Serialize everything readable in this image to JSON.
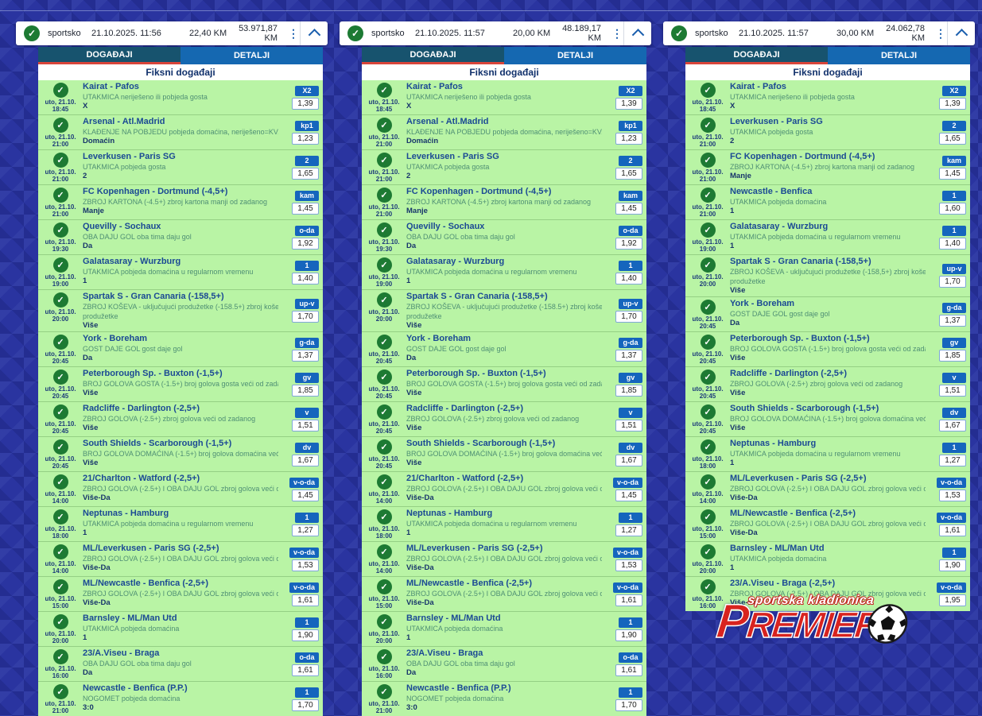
{
  "icons": {
    "check_icon": "✓",
    "menu_icon": "⋮",
    "collapse_icon": "chevron-up",
    "soccer_ball_icon": "soccer-ball"
  },
  "colors": {
    "background": "#2a34a0",
    "row_green": "#b9f4a5",
    "badge_blue": "#1565bd",
    "tab_active": "#17536e",
    "tab_inactive": "#1568b1",
    "tab_underline_red": "#d9453a",
    "check_green": "#1d7a33",
    "brand_red": "#d8231f"
  },
  "logo": {
    "tagline": "sportska kladionica",
    "name": "PREMIER"
  },
  "tickets": [
    {
      "header": {
        "type": "sportsko",
        "datetime": "21.10.2025. 11:56",
        "stake": "22,40 KM",
        "payout": "53.971,87 KM"
      },
      "tabs": [
        {
          "label": "DOGAĐAJI",
          "active": true
        },
        {
          "label": "DETALJI",
          "active": false
        }
      ],
      "section_title": "Fiksni događaji",
      "events": [
        {
          "day": "uto, 21.10.",
          "time": "18:45",
          "match": "Kairat - Pafos",
          "market": "UTAKMICA neriješeno ili pobjeda gosta",
          "pick": "X",
          "code": "X2",
          "odds": "1,39"
        },
        {
          "day": "uto, 21.10.",
          "time": "21:00",
          "match": "Arsenal - Atl.Madrid",
          "market": "KLAĐENJE NA POBJEDU pobjeda domaćina, neriješeno=KV.1",
          "pick": "Domaćin",
          "code": "kp1",
          "odds": "1,23"
        },
        {
          "day": "uto, 21.10.",
          "time": "21:00",
          "match": "Leverkusen - Paris SG",
          "market": "UTAKMICA pobjeda gosta",
          "pick": "2",
          "code": "2",
          "odds": "1,65"
        },
        {
          "day": "uto, 21.10.",
          "time": "21:00",
          "match": "FC Kopenhagen - Dortmund (-4,5+)",
          "market": "ZBROJ KARTONA (-4.5+) zbroj kartona manji od zadanog",
          "pick": "Manje",
          "code": "kam",
          "odds": "1,45"
        },
        {
          "day": "uto, 21.10.",
          "time": "19:30",
          "match": "Quevilly - Sochaux",
          "market": "OBA DAJU GOL oba tima daju gol",
          "pick": "Da",
          "code": "o-da",
          "odds": "1,92"
        },
        {
          "day": "uto, 21.10.",
          "time": "19:00",
          "match": "Galatasaray - Wurzburg",
          "market": "UTAKMICA pobjeda domaćina u regularnom vremenu",
          "pick": "1",
          "code": "1",
          "odds": "1,40"
        },
        {
          "day": "uto, 21.10.",
          "time": "20:00",
          "match": "Spartak S - Gran Canaria (-158,5+)",
          "market": "ZBROJ KOŠEVA - uključujući produžetke (-158.5+) zbroj koševa veći od zadanog uključujući",
          "market2": "produžetke",
          "pick": "Više",
          "code": "up-v",
          "odds": "1,70"
        },
        {
          "day": "uto, 21.10.",
          "time": "20:45",
          "match": "York - Boreham",
          "market": "GOST DAJE GOL gost daje gol",
          "pick": "Da",
          "code": "g-da",
          "odds": "1,37"
        },
        {
          "day": "uto, 21.10.",
          "time": "20:45",
          "match": "Peterborough Sp. - Buxton (-1,5+)",
          "market": "BROJ GOLOVA GOSTA (-1.5+) broj golova gosta veći od zadanog",
          "pick": "Više",
          "code": "gv",
          "odds": "1,85"
        },
        {
          "day": "uto, 21.10.",
          "time": "20:45",
          "match": "Radcliffe - Darlington (-2,5+)",
          "market": "ZBROJ GOLOVA (-2.5+) zbroj golova veći od zadanog",
          "pick": "Više",
          "code": "v",
          "odds": "1,51"
        },
        {
          "day": "uto, 21.10.",
          "time": "20:45",
          "match": "South Shields - Scarborough (-1,5+)",
          "market": "BROJ GOLOVA DOMAĆINA (-1.5+) broj golova domaćina veći od zadanog",
          "pick": "Više",
          "code": "dv",
          "odds": "1,67"
        },
        {
          "day": "uto, 21.10.",
          "time": "14:00",
          "match": "21/Charlton - Watford (-2,5+)",
          "market": "ZBROJ GOLOVA (-2.5+) I OBA DAJU GOL zbroj golova veći od zadanog i oba daju gol",
          "pick": "Više-Da",
          "code": "v-o-da",
          "odds": "1,45"
        },
        {
          "day": "uto, 21.10.",
          "time": "18:00",
          "match": "Neptunas - Hamburg",
          "market": "UTAKMICA pobjeda domaćina u regularnom vremenu",
          "pick": "1",
          "code": "1",
          "odds": "1,27"
        },
        {
          "day": "uto, 21.10.",
          "time": "14:00",
          "match": "ML/Leverkusen - Paris SG (-2,5+)",
          "market": "ZBROJ GOLOVA (-2.5+) I OBA DAJU GOL zbroj golova veći od zadanog i oba daju gol",
          "pick": "Više-Da",
          "code": "v-o-da",
          "odds": "1,53"
        },
        {
          "day": "uto, 21.10.",
          "time": "15:00",
          "match": "ML/Newcastle - Benfica (-2,5+)",
          "market": "ZBROJ GOLOVA (-2.5+) I OBA DAJU GOL zbroj golova veći od zadanog i oba daju gol",
          "pick": "Više-Da",
          "code": "v-o-da",
          "odds": "1,61"
        },
        {
          "day": "uto, 21.10.",
          "time": "20:00",
          "match": "Barnsley - ML/Man Utd",
          "market": "UTAKMICA pobjeda domaćina",
          "pick": "1",
          "code": "1",
          "odds": "1,90"
        },
        {
          "day": "uto, 21.10.",
          "time": "16:00",
          "match": "23/A.Viseu - Braga",
          "market": "OBA DAJU GOL oba tima daju gol",
          "pick": "Da",
          "code": "o-da",
          "odds": "1,61"
        },
        {
          "day": "uto, 21.10.",
          "time": "21:00",
          "match": "Newcastle - Benfica (P.P.)",
          "market": "NOGOMET pobjeda domaćina",
          "pick": "3:0",
          "code": "1",
          "odds": "1,70"
        }
      ]
    },
    {
      "header": {
        "type": "sportsko",
        "datetime": "21.10.2025. 11:57",
        "stake": "20,00 KM",
        "payout": "48.189,17 KM"
      },
      "tabs": [
        {
          "label": "DOGAĐAJI",
          "active": true
        },
        {
          "label": "DETALJI",
          "active": false
        }
      ],
      "section_title": "Fiksni događaji",
      "events": [
        {
          "day": "uto, 21.10.",
          "time": "18:45",
          "match": "Kairat - Pafos",
          "market": "UTAKMICA neriješeno ili pobjeda gosta",
          "pick": "X",
          "code": "X2",
          "odds": "1,39"
        },
        {
          "day": "uto, 21.10.",
          "time": "21:00",
          "match": "Arsenal - Atl.Madrid",
          "market": "KLAĐENJE NA POBJEDU pobjeda domaćina, neriješeno=KV.1",
          "pick": "Domaćin",
          "code": "kp1",
          "odds": "1,23"
        },
        {
          "day": "uto, 21.10.",
          "time": "21:00",
          "match": "Leverkusen - Paris SG",
          "market": "UTAKMICA pobjeda gosta",
          "pick": "2",
          "code": "2",
          "odds": "1,65"
        },
        {
          "day": "uto, 21.10.",
          "time": "21:00",
          "match": "FC Kopenhagen - Dortmund (-4,5+)",
          "market": "ZBROJ KARTONA (-4.5+) zbroj kartona manji od zadanog",
          "pick": "Manje",
          "code": "kam",
          "odds": "1,45"
        },
        {
          "day": "uto, 21.10.",
          "time": "19:30",
          "match": "Quevilly - Sochaux",
          "market": "OBA DAJU GOL oba tima daju gol",
          "pick": "Da",
          "code": "o-da",
          "odds": "1,92"
        },
        {
          "day": "uto, 21.10.",
          "time": "19:00",
          "match": "Galatasaray - Wurzburg",
          "market": "UTAKMICA pobjeda domaćina u regularnom vremenu",
          "pick": "1",
          "code": "1",
          "odds": "1,40"
        },
        {
          "day": "uto, 21.10.",
          "time": "20:00",
          "match": "Spartak S - Gran Canaria (-158,5+)",
          "market": "ZBROJ KOŠEVA - uključujući produžetke (-158.5+) zbroj koševa veći od zadanog uključujući",
          "market2": "produžetke",
          "pick": "Više",
          "code": "up-v",
          "odds": "1,70"
        },
        {
          "day": "uto, 21.10.",
          "time": "20:45",
          "match": "York - Boreham",
          "market": "GOST DAJE GOL gost daje gol",
          "pick": "Da",
          "code": "g-da",
          "odds": "1,37"
        },
        {
          "day": "uto, 21.10.",
          "time": "20:45",
          "match": "Peterborough Sp. - Buxton (-1,5+)",
          "market": "BROJ GOLOVA GOSTA (-1.5+) broj golova gosta veći od zadanog",
          "pick": "Više",
          "code": "gv",
          "odds": "1,85"
        },
        {
          "day": "uto, 21.10.",
          "time": "20:45",
          "match": "Radcliffe - Darlington (-2,5+)",
          "market": "ZBROJ GOLOVA (-2.5+) zbroj golova veći od zadanog",
          "pick": "Više",
          "code": "v",
          "odds": "1,51"
        },
        {
          "day": "uto, 21.10.",
          "time": "20:45",
          "match": "South Shields - Scarborough (-1,5+)",
          "market": "BROJ GOLOVA DOMAĆINA (-1.5+) broj golova domaćina veći od zadanog",
          "pick": "Više",
          "code": "dv",
          "odds": "1,67"
        },
        {
          "day": "uto, 21.10.",
          "time": "14:00",
          "match": "21/Charlton - Watford (-2,5+)",
          "market": "ZBROJ GOLOVA (-2.5+) I OBA DAJU GOL zbroj golova veći od zadanog i oba daju gol",
          "pick": "Više-Da",
          "code": "v-o-da",
          "odds": "1,45"
        },
        {
          "day": "uto, 21.10.",
          "time": "18:00",
          "match": "Neptunas - Hamburg",
          "market": "UTAKMICA pobjeda domaćina u regularnom vremenu",
          "pick": "1",
          "code": "1",
          "odds": "1,27"
        },
        {
          "day": "uto, 21.10.",
          "time": "14:00",
          "match": "ML/Leverkusen - Paris SG (-2,5+)",
          "market": "ZBROJ GOLOVA (-2.5+) I OBA DAJU GOL zbroj golova veći od zadanog i oba daju gol",
          "pick": "Više-Da",
          "code": "v-o-da",
          "odds": "1,53"
        },
        {
          "day": "uto, 21.10.",
          "time": "15:00",
          "match": "ML/Newcastle - Benfica (-2,5+)",
          "market": "ZBROJ GOLOVA (-2.5+) I OBA DAJU GOL zbroj golova veći od zadanog i oba daju gol",
          "pick": "Više-Da",
          "code": "v-o-da",
          "odds": "1,61"
        },
        {
          "day": "uto, 21.10.",
          "time": "20:00",
          "match": "Barnsley - ML/Man Utd",
          "market": "UTAKMICA pobjeda domaćina",
          "pick": "1",
          "code": "1",
          "odds": "1,90"
        },
        {
          "day": "uto, 21.10.",
          "time": "16:00",
          "match": "23/A.Viseu - Braga",
          "market": "OBA DAJU GOL oba tima daju gol",
          "pick": "Da",
          "code": "o-da",
          "odds": "1,61"
        },
        {
          "day": "uto, 21.10.",
          "time": "21:00",
          "match": "Newcastle - Benfica (P.P.)",
          "market": "NOGOMET pobjeda domaćina",
          "pick": "3:0",
          "code": "1",
          "odds": "1,70"
        }
      ]
    },
    {
      "header": {
        "type": "sportsko",
        "datetime": "21.10.2025. 11:57",
        "stake": "30,00 KM",
        "payout": "24.062,78 KM"
      },
      "tabs": [
        {
          "label": "DOGAĐAJI",
          "active": true
        },
        {
          "label": "DETALJI",
          "active": false
        }
      ],
      "section_title": "Fiksni događaji",
      "events": [
        {
          "day": "uto, 21.10.",
          "time": "18:45",
          "match": "Kairat - Pafos",
          "market": "UTAKMICA neriješeno ili pobjeda gosta",
          "pick": "X",
          "code": "X2",
          "odds": "1,39"
        },
        {
          "day": "uto, 21.10.",
          "time": "21:00",
          "match": "Leverkusen - Paris SG",
          "market": "UTAKMICA pobjeda gosta",
          "pick": "2",
          "code": "2",
          "odds": "1,65"
        },
        {
          "day": "uto, 21.10.",
          "time": "21:00",
          "match": "FC Kopenhagen - Dortmund (-4,5+)",
          "market": "ZBROJ KARTONA (-4.5+) zbroj kartona manji od zadanog",
          "pick": "Manje",
          "code": "kam",
          "odds": "1,45"
        },
        {
          "day": "uto, 21.10.",
          "time": "21:00",
          "match": "Newcastle - Benfica",
          "market": "UTAKMICA pobjeda domaćina",
          "pick": "1",
          "code": "1",
          "odds": "1,60"
        },
        {
          "day": "uto, 21.10.",
          "time": "19:00",
          "match": "Galatasaray - Wurzburg",
          "market": "UTAKMICA pobjeda domaćina u regularnom vremenu",
          "pick": "1",
          "code": "1",
          "odds": "1,40"
        },
        {
          "day": "uto, 21.10.",
          "time": "20:00",
          "match": "Spartak S - Gran Canaria (-158,5+)",
          "market": "ZBROJ KOŠEVA - uključujući produžetke (-158,5+) zbroj koševa veći od zadanog uključujući",
          "market2": "produžetke",
          "pick": "Više",
          "code": "up-v",
          "odds": "1,70"
        },
        {
          "day": "uto, 21.10.",
          "time": "20:45",
          "match": "York - Boreham",
          "market": "GOST DAJE GOL gost daje gol",
          "pick": "Da",
          "code": "g-da",
          "odds": "1,37"
        },
        {
          "day": "uto, 21.10.",
          "time": "20:45",
          "match": "Peterborough Sp. - Buxton (-1,5+)",
          "market": "BROJ GOLOVA GOSTA (-1.5+) broj golova gosta veći od zadanog",
          "pick": "Više",
          "code": "gv",
          "odds": "1,85"
        },
        {
          "day": "uto, 21.10.",
          "time": "20:45",
          "match": "Radcliffe - Darlington (-2,5+)",
          "market": "ZBROJ GOLOVA (-2.5+) zbroj golova veći od zadanog",
          "pick": "Više",
          "code": "v",
          "odds": "1,51"
        },
        {
          "day": "uto, 21.10.",
          "time": "20:45",
          "match": "South Shields - Scarborough (-1,5+)",
          "market": "BROJ GOLOVA DOMAĆINA (-1.5+) broj golova domaćina veći od zadanog",
          "pick": "Više",
          "code": "dv",
          "odds": "1,67"
        },
        {
          "day": "uto, 21.10.",
          "time": "18:00",
          "match": "Neptunas - Hamburg",
          "market": "UTAKMICA pobjeda domaćina u regularnom vremenu",
          "pick": "1",
          "code": "1",
          "odds": "1,27"
        },
        {
          "day": "uto, 21.10.",
          "time": "14:00",
          "match": "ML/Leverkusen - Paris SG (-2,5+)",
          "market": "ZBROJ GOLOVA (-2.5+) I OBA DAJU GOL zbroj golova veći od zadanog i oba daju gol",
          "pick": "Više-Da",
          "code": "v-o-da",
          "odds": "1,53"
        },
        {
          "day": "uto, 21.10.",
          "time": "15:00",
          "match": "ML/Newcastle - Benfica (-2,5+)",
          "market": "ZBROJ GOLOVA (-2.5+) I OBA DAJU GOL zbroj golova veći od zadanog i oba daju gol",
          "pick": "Više-Da",
          "code": "v-o-da",
          "odds": "1,61"
        },
        {
          "day": "uto, 21.10.",
          "time": "20:00",
          "match": "Barnsley - ML/Man Utd",
          "market": "UTAKMICA pobjeda domaćina",
          "pick": "1",
          "code": "1",
          "odds": "1,90"
        },
        {
          "day": "uto, 21.10.",
          "time": "16:00",
          "match": "23/A.Viseu - Braga (-2,5+)",
          "market": "ZBROJ GOLOVA (-2.5+) I OBA DAJU GOL zbroj golova veći od zadanog i oba daju gol",
          "pick": "Više-Da",
          "code": "v-o-da",
          "odds": "1,95"
        }
      ]
    }
  ]
}
